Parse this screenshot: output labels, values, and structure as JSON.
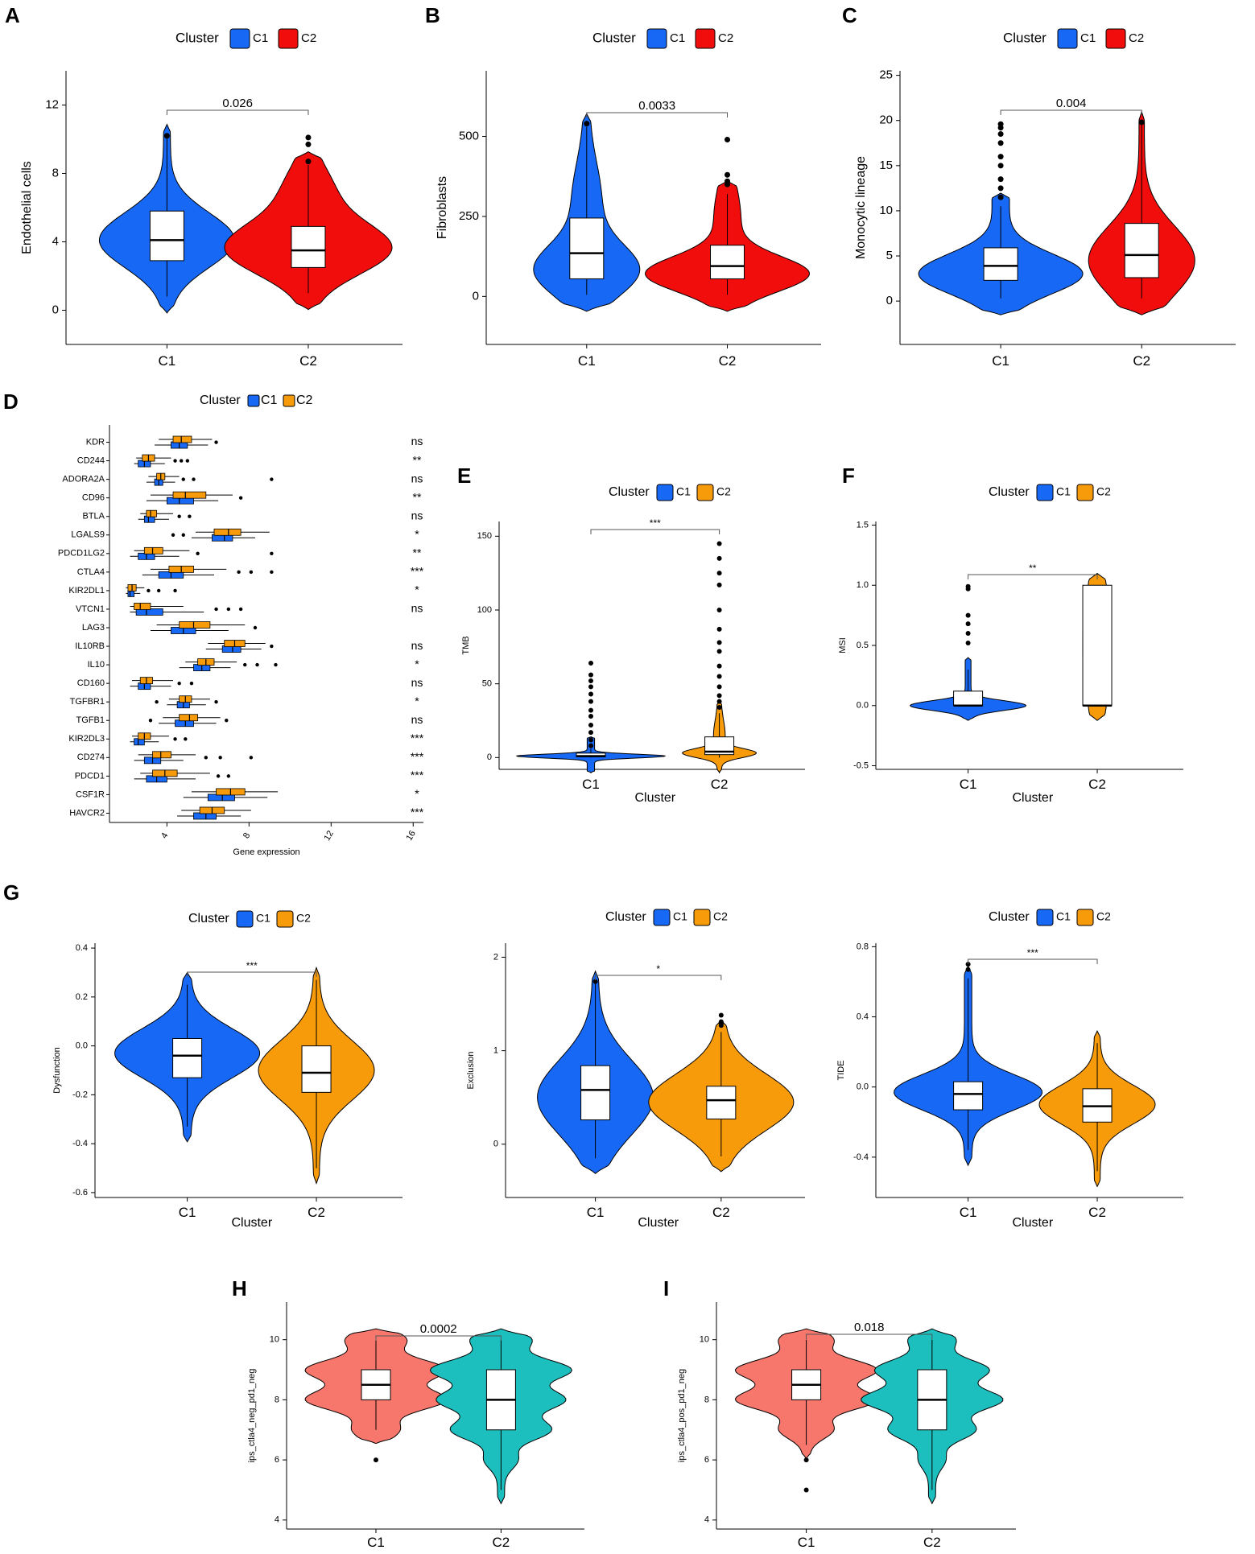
{
  "panel_labels": [
    "A",
    "B",
    "C",
    "D",
    "E",
    "F",
    "G",
    "H",
    "I"
  ],
  "legend_title": "Cluster",
  "colors": {
    "c1_blue": "#1769f5",
    "c2_red": "#f20d0d",
    "c2_orange": "#f79b0a",
    "c1_salmon": "#f7776d",
    "c2_teal": "#1cbfbd",
    "box_fill": "#ffffff",
    "outline": "#000000"
  },
  "chart_data": [
    {
      "id": "A",
      "type": "violin",
      "legend": [
        "C1",
        "C2"
      ],
      "legend_title": "Cluster",
      "categories": [
        "C1",
        "C2"
      ],
      "ylabel": "Endothelial cells",
      "xlabel": "",
      "ylim": [
        -2,
        14
      ],
      "yticks": [
        "0",
        "4",
        "8",
        "12"
      ],
      "ytick_values": [
        0,
        4,
        8,
        12
      ],
      "pvalue": "0.026",
      "series": [
        {
          "name": "C1",
          "min": 0.8,
          "q1": 2.9,
          "median": 4.1,
          "q3": 5.8,
          "max": 10.1,
          "outliers": [
            10.2
          ]
        },
        {
          "name": "C2",
          "min": 1.0,
          "q1": 2.5,
          "median": 3.5,
          "q3": 4.9,
          "max": 8.5,
          "outliers": [
            8.7,
            9.7,
            10.1
          ]
        }
      ]
    },
    {
      "id": "B",
      "type": "violin",
      "legend": [
        "C1",
        "C2"
      ],
      "legend_title": "Cluster",
      "categories": [
        "C1",
        "C2"
      ],
      "ylabel": "Fibroblasts",
      "xlabel": "",
      "ylim": [
        -150,
        705
      ],
      "yticks": [
        "0",
        "250",
        "500"
      ],
      "ytick_values": [
        0,
        250,
        500
      ],
      "pvalue": "0.0033",
      "series": [
        {
          "name": "C1",
          "min": 5,
          "q1": 55,
          "median": 135,
          "q3": 245,
          "max": 530,
          "outliers": [
            540
          ]
        },
        {
          "name": "C2",
          "min": 5,
          "q1": 55,
          "median": 95,
          "q3": 160,
          "max": 320,
          "outliers": [
            350,
            360,
            380,
            490
          ]
        }
      ]
    },
    {
      "id": "C",
      "type": "violin",
      "legend": [
        "C1",
        "C2"
      ],
      "legend_title": "Cluster",
      "categories": [
        "C1",
        "C2"
      ],
      "ylabel": "Monocytic lineage",
      "xlabel": "",
      "ylim": [
        -4.8,
        25.5
      ],
      "yticks": [
        "0",
        "5",
        "10",
        "15",
        "20",
        "25"
      ],
      "ytick_values": [
        0,
        5,
        10,
        15,
        20,
        25
      ],
      "pvalue": "0.004",
      "series": [
        {
          "name": "C1",
          "min": 0.3,
          "q1": 2.3,
          "median": 3.9,
          "q3": 5.9,
          "max": 10.5,
          "outliers": [
            11.5,
            12.5,
            13.5,
            15,
            16,
            17.5,
            18.5,
            19.2,
            19.6
          ]
        },
        {
          "name": "C2",
          "min": 0.3,
          "q1": 2.6,
          "median": 5.1,
          "q3": 8.6,
          "max": 19.5,
          "outliers": [
            19.8
          ]
        }
      ]
    },
    {
      "id": "D",
      "type": "horizontal_boxplot",
      "legend": [
        "C1",
        "C2"
      ],
      "legend_title": "Cluster",
      "xlabel": "Gene expression",
      "xlim": [
        1.2,
        16.5
      ],
      "xticks": [
        "4",
        "8",
        "12",
        "16"
      ],
      "xtick_values": [
        4,
        8,
        12,
        16
      ],
      "genes": [
        {
          "gene": "KDR",
          "sig": "ns",
          "c1": [
            3.4,
            4.2,
            4.6,
            5.0,
            6.0
          ],
          "c2": [
            3.6,
            4.3,
            4.7,
            5.2,
            6.2
          ],
          "out": [
            6.4
          ]
        },
        {
          "gene": "CD244",
          "sig": "**",
          "c1": [
            2.4,
            2.6,
            2.9,
            3.2,
            3.9
          ],
          "c2": [
            2.5,
            2.8,
            3.1,
            3.4,
            4.2
          ],
          "out": [
            4.4,
            4.7,
            5.0
          ]
        },
        {
          "gene": "ADORA2A",
          "sig": "ns",
          "c1": [
            3.0,
            3.4,
            3.6,
            3.8,
            4.4
          ],
          "c2": [
            3.1,
            3.5,
            3.7,
            3.9,
            4.6
          ],
          "out": [
            4.8,
            5.3,
            9.1
          ]
        },
        {
          "gene": "CD96",
          "sig": "**",
          "c1": [
            3.0,
            4.0,
            4.6,
            5.3,
            6.5
          ],
          "c2": [
            3.2,
            4.3,
            4.9,
            5.9,
            7.2
          ],
          "out": [
            7.6
          ]
        },
        {
          "gene": "BTLA",
          "sig": "ns",
          "c1": [
            2.6,
            2.9,
            3.1,
            3.4,
            4.1
          ],
          "c2": [
            2.7,
            3.0,
            3.2,
            3.5,
            4.3
          ],
          "out": [
            4.6,
            5.1
          ]
        },
        {
          "gene": "LGALS9",
          "sig": "*",
          "c1": [
            5.2,
            6.2,
            6.8,
            7.2,
            8.3
          ],
          "c2": [
            5.4,
            6.3,
            7.0,
            7.6,
            9.0
          ],
          "out": [
            4.3,
            4.8
          ]
        },
        {
          "gene": "PDCD1LG2",
          "sig": "**",
          "c1": [
            2.2,
            2.6,
            3.0,
            3.4,
            4.6
          ],
          "c2": [
            2.4,
            2.9,
            3.3,
            3.8,
            5.1
          ],
          "out": [
            5.5,
            9.1
          ]
        },
        {
          "gene": "CTLA4",
          "sig": "***",
          "c1": [
            2.8,
            3.6,
            4.2,
            4.8,
            6.3
          ],
          "c2": [
            3.2,
            4.1,
            4.7,
            5.3,
            6.9
          ],
          "out": [
            7.5,
            8.1,
            9.1
          ]
        },
        {
          "gene": "KIR2DL1",
          "sig": "*",
          "c1": [
            2.0,
            2.1,
            2.2,
            2.4,
            2.7
          ],
          "c2": [
            2.0,
            2.1,
            2.3,
            2.5,
            2.9
          ],
          "out": [
            3.1,
            3.6,
            4.4
          ]
        },
        {
          "gene": "VTCN1",
          "sig": "ns",
          "c1": [
            2.2,
            2.5,
            3.0,
            3.8,
            5.8
          ],
          "c2": [
            2.2,
            2.4,
            2.7,
            3.2,
            4.8
          ],
          "out": [
            6.4,
            7.0,
            7.6
          ]
        },
        {
          "gene": "LAG3",
          "sig": "",
          "c1": [
            3.2,
            4.2,
            4.8,
            5.4,
            7.0
          ],
          "c2": [
            3.5,
            4.6,
            5.3,
            6.1,
            7.8
          ],
          "out": [
            8.3
          ]
        },
        {
          "gene": "IL10RB",
          "sig": "ns",
          "c1": [
            5.9,
            6.7,
            7.2,
            7.6,
            8.6
          ],
          "c2": [
            6.0,
            6.8,
            7.3,
            7.8,
            8.8
          ],
          "out": [
            9.1
          ]
        },
        {
          "gene": "IL10",
          "sig": "*",
          "c1": [
            4.6,
            5.3,
            5.7,
            6.1,
            7.1
          ],
          "c2": [
            4.9,
            5.5,
            5.9,
            6.3,
            7.4
          ],
          "out": [
            7.8,
            8.4,
            9.3
          ]
        },
        {
          "gene": "CD160",
          "sig": "ns",
          "c1": [
            2.2,
            2.6,
            2.9,
            3.2,
            4.2
          ],
          "c2": [
            2.3,
            2.7,
            3.0,
            3.3,
            4.3
          ],
          "out": [
            4.6,
            5.2
          ]
        },
        {
          "gene": "TGFBR1",
          "sig": "*",
          "c1": [
            4.0,
            4.5,
            4.8,
            5.1,
            5.9
          ],
          "c2": [
            4.1,
            4.6,
            4.9,
            5.2,
            6.1
          ],
          "out": [
            3.5,
            6.4
          ]
        },
        {
          "gene": "TGFB1",
          "sig": "ns",
          "c1": [
            3.6,
            4.4,
            4.9,
            5.3,
            6.4
          ],
          "c2": [
            3.8,
            4.6,
            5.1,
            5.5,
            6.6
          ],
          "out": [
            3.2,
            6.9
          ]
        },
        {
          "gene": "KIR2DL3",
          "sig": "***",
          "c1": [
            2.2,
            2.4,
            2.6,
            2.9,
            3.6
          ],
          "c2": [
            2.3,
            2.6,
            2.9,
            3.2,
            4.1
          ],
          "out": [
            4.4,
            4.9
          ]
        },
        {
          "gene": "CD274",
          "sig": "***",
          "c1": [
            2.4,
            2.9,
            3.3,
            3.7,
            4.8
          ],
          "c2": [
            2.6,
            3.3,
            3.7,
            4.2,
            5.4
          ],
          "out": [
            5.9,
            6.6,
            8.1
          ]
        },
        {
          "gene": "PDCD1",
          "sig": "***",
          "c1": [
            2.4,
            3.0,
            3.5,
            4.0,
            5.4
          ],
          "c2": [
            2.7,
            3.3,
            3.9,
            4.5,
            6.1
          ],
          "out": [
            6.5,
            7.0
          ]
        },
        {
          "gene": "CSF1R",
          "sig": "*",
          "c1": [
            4.8,
            6.0,
            6.7,
            7.3,
            8.9
          ],
          "c2": [
            5.2,
            6.4,
            7.1,
            7.8,
            9.4
          ],
          "out": []
        },
        {
          "gene": "HAVCR2",
          "sig": "***",
          "c1": [
            4.5,
            5.3,
            5.9,
            6.4,
            7.6
          ],
          "c2": [
            4.7,
            5.6,
            6.2,
            6.8,
            8.1
          ],
          "out": []
        }
      ]
    },
    {
      "id": "E",
      "type": "violin",
      "legend": [
        "C1",
        "C2"
      ],
      "legend_title": "Cluster",
      "categories": [
        "C1",
        "C2"
      ],
      "ylabel": "TMB",
      "xlabel": "Cluster",
      "ylim": [
        -8,
        160
      ],
      "yticks": [
        "0",
        "50",
        "100",
        "150"
      ],
      "ytick_values": [
        0,
        50,
        100,
        150
      ],
      "pvalue": "***",
      "series": [
        {
          "name": "C1",
          "min": 0,
          "q1": 0.5,
          "median": 1,
          "q3": 3,
          "max": 6,
          "outliers": [
            8,
            12,
            17,
            22,
            28,
            32,
            38,
            43,
            48,
            52,
            56,
            64
          ]
        },
        {
          "name": "C2",
          "min": 0,
          "q1": 2,
          "median": 4,
          "q3": 14,
          "max": 30,
          "outliers": [
            34,
            38,
            42,
            48,
            55,
            62,
            72,
            78,
            87,
            100,
            117,
            125,
            135,
            145
          ]
        }
      ]
    },
    {
      "id": "F",
      "type": "violin",
      "legend": [
        "C1",
        "C2"
      ],
      "legend_title": "Cluster",
      "categories": [
        "C1",
        "C2"
      ],
      "ylabel": "MSI",
      "xlabel": "Cluster",
      "ylim": [
        -0.53,
        1.53
      ],
      "yticks": [
        "-0.5",
        "0.0",
        "0.5",
        "1.0",
        "1.5"
      ],
      "ytick_values": [
        -0.5,
        0,
        0.5,
        1,
        1.5
      ],
      "pvalue": "**",
      "series": [
        {
          "name": "C1",
          "min": 0,
          "q1": 0,
          "median": 0,
          "q3": 0.12,
          "max": 0.3,
          "outliers": [
            0.52,
            0.6,
            0.68,
            0.75,
            0.97,
            0.99
          ]
        },
        {
          "name": "C2",
          "min": 0,
          "q1": 0,
          "median": 0,
          "q3": 1.0,
          "max": 1.0,
          "outliers": []
        }
      ]
    },
    {
      "id": "G1",
      "type": "violin",
      "legend": [
        "C1",
        "C2"
      ],
      "legend_title": "Cluster",
      "categories": [
        "C1",
        "C2"
      ],
      "ylabel": "Dysfunction",
      "xlabel": "Cluster",
      "ylim": [
        -0.62,
        0.42
      ],
      "yticks": [
        "-0.6",
        "-0.4",
        "-0.2",
        "0.0",
        "0.2",
        "0.4"
      ],
      "ytick_values": [
        -0.6,
        -0.4,
        -0.2,
        0,
        0.2,
        0.4
      ],
      "pvalue": "***",
      "series": [
        {
          "name": "C1",
          "min": -0.33,
          "q1": -0.13,
          "median": -0.04,
          "q3": 0.03,
          "max": 0.25,
          "outliers": []
        },
        {
          "name": "C2",
          "min": -0.5,
          "q1": -0.19,
          "median": -0.11,
          "q3": 0.0,
          "max": 0.27,
          "outliers": []
        }
      ]
    },
    {
      "id": "G2",
      "type": "violin",
      "legend": [
        "C1",
        "C2"
      ],
      "legend_title": "Cluster",
      "categories": [
        "C1",
        "C2"
      ],
      "ylabel": "Exclusion",
      "xlabel": "Cluster",
      "ylim": [
        -0.57,
        2.15
      ],
      "yticks": [
        "0",
        "1",
        "2"
      ],
      "ytick_values": [
        0,
        1,
        2
      ],
      "pvalue": "*",
      "series": [
        {
          "name": "C1",
          "min": -0.15,
          "q1": 0.26,
          "median": 0.58,
          "q3": 0.84,
          "max": 1.72,
          "outliers": [
            1.74
          ]
        },
        {
          "name": "C2",
          "min": -0.13,
          "q1": 0.27,
          "median": 0.47,
          "q3": 0.62,
          "max": 1.2,
          "outliers": [
            1.27,
            1.29,
            1.31,
            1.38
          ]
        }
      ]
    },
    {
      "id": "G3",
      "type": "violin",
      "legend": [
        "C1",
        "C2"
      ],
      "legend_title": "Cluster",
      "categories": [
        "C1",
        "C2"
      ],
      "ylabel": "TIDE",
      "xlabel": "Cluster",
      "ylim": [
        -0.63,
        0.82
      ],
      "yticks": [
        "-0.4",
        "0.0",
        "0.4",
        "0.8"
      ],
      "ytick_values": [
        -0.4,
        0,
        0.4,
        0.8
      ],
      "pvalue": "***",
      "series": [
        {
          "name": "C1",
          "min": -0.36,
          "q1": -0.13,
          "median": -0.04,
          "q3": 0.03,
          "max": 0.62,
          "outliers": [
            0.67,
            0.7
          ]
        },
        {
          "name": "C2",
          "min": -0.48,
          "q1": -0.2,
          "median": -0.11,
          "q3": -0.01,
          "max": 0.25,
          "outliers": []
        }
      ]
    },
    {
      "id": "H",
      "type": "violin",
      "legend": [],
      "legend_title": "",
      "categories": [
        "C1",
        "C2"
      ],
      "ylabel": "ips_ctla4_neg_pd1_neg",
      "xlabel": "",
      "ylim": [
        3.7,
        11.25
      ],
      "yticks": [
        "4",
        "6",
        "8",
        "10"
      ],
      "ytick_values": [
        4,
        6,
        8,
        10
      ],
      "pvalue": "0.0002",
      "series": [
        {
          "name": "C1",
          "min": 7,
          "q1": 8,
          "median": 8.5,
          "q3": 9,
          "max": 10,
          "outliers": [
            6
          ]
        },
        {
          "name": "C2",
          "min": 5,
          "q1": 7,
          "median": 8,
          "q3": 9,
          "max": 10,
          "outliers": []
        }
      ]
    },
    {
      "id": "I",
      "type": "violin",
      "legend": [],
      "legend_title": "",
      "categories": [
        "C1",
        "C2"
      ],
      "ylabel": "ips_ctla4_pos_pd1_neg",
      "xlabel": "",
      "ylim": [
        3.7,
        11.25
      ],
      "yticks": [
        "4",
        "6",
        "8",
        "10"
      ],
      "ytick_values": [
        4,
        6,
        8,
        10
      ],
      "pvalue": "0.018",
      "series": [
        {
          "name": "C1",
          "min": 6.5,
          "q1": 8,
          "median": 8.5,
          "q3": 9,
          "max": 10,
          "outliers": [
            6,
            5
          ]
        },
        {
          "name": "C2",
          "min": 5,
          "q1": 7,
          "median": 8,
          "q3": 9,
          "max": 10,
          "outliers": []
        }
      ]
    }
  ]
}
